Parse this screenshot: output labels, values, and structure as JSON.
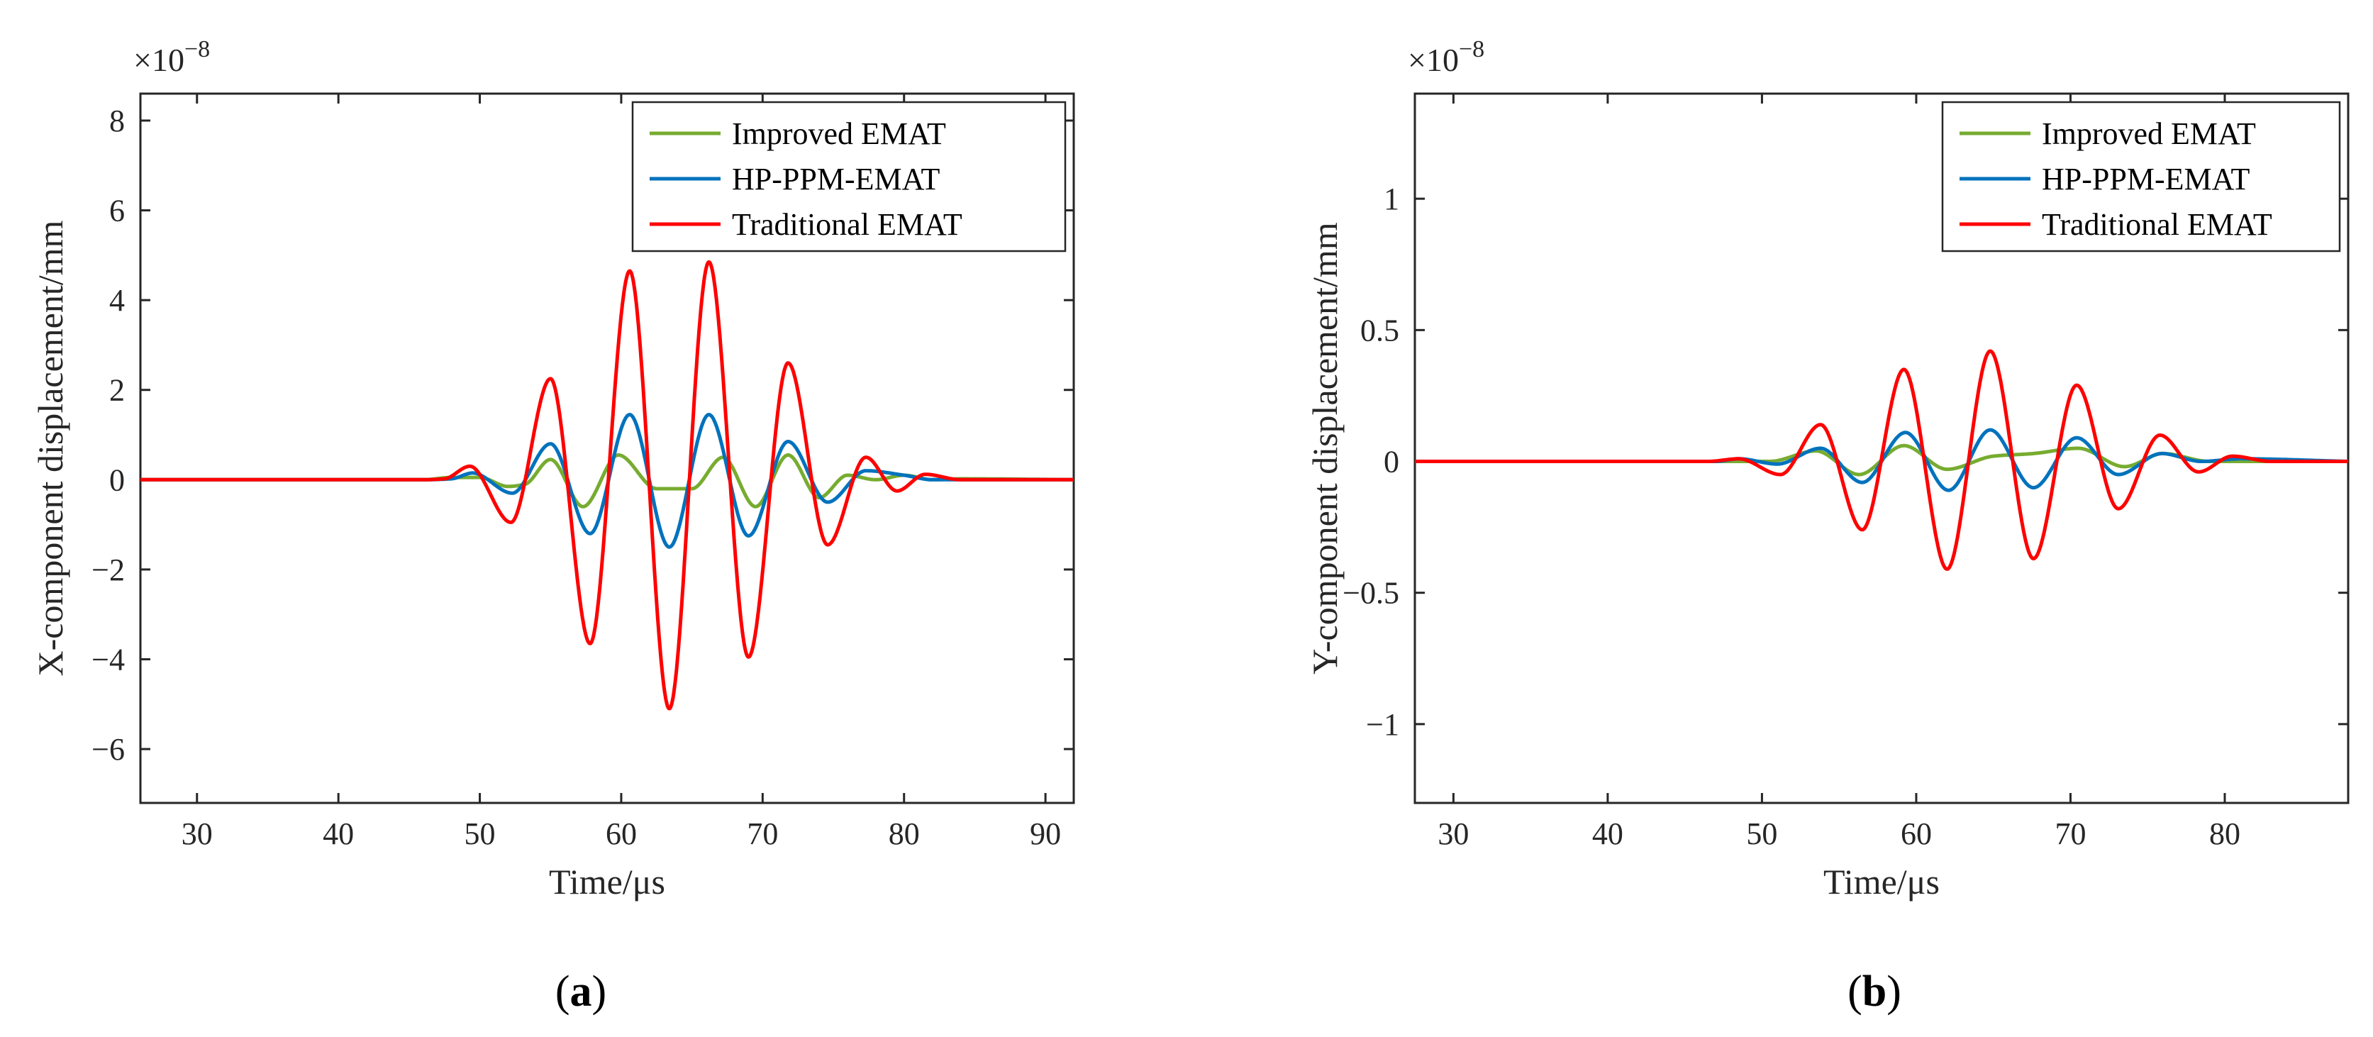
{
  "figure_labels": [
    {
      "open": "(",
      "letter": "a",
      "close": ")"
    },
    {
      "open": "(",
      "letter": "b",
      "close": ")"
    }
  ],
  "colors": {
    "improved": "#77AC30",
    "hp_ppm": "#0072BD",
    "traditional": "#FF0000",
    "axis": "#262626"
  },
  "chart_data": [
    {
      "type": "line",
      "xlabel": "Time/μs",
      "ylabel": "X-component displacement/mm",
      "exponent_text": {
        "base": "×10",
        "power": "−8"
      },
      "xlim": [
        26,
        92
      ],
      "ylim": [
        -7.2,
        8.6
      ],
      "xticks": [
        30,
        40,
        50,
        60,
        70,
        80,
        90
      ],
      "xtick_labels": [
        "30",
        "40",
        "50",
        "60",
        "70",
        "80",
        "90"
      ],
      "yticks": [
        -6,
        -4,
        -2,
        0,
        2,
        4,
        6,
        8
      ],
      "ytick_labels": [
        "−6",
        "−4",
        "−2",
        "0",
        "2",
        "4",
        "6",
        "8"
      ],
      "legend": {
        "position": "top-right",
        "entries": [
          "Improved  EMAT",
          "HP-PPM-EMAT",
          "Traditional EMAT"
        ]
      },
      "series": [
        {
          "name": "Improved  EMAT",
          "color_key": "improved",
          "x": [
            26,
            46,
            48,
            50,
            52,
            53.2,
            55,
            57.3,
            59.8,
            62.5,
            65,
            67.2,
            69.5,
            71.8,
            74,
            76,
            78,
            80,
            82,
            84,
            92
          ],
          "y": [
            0,
            0,
            0.05,
            0.05,
            -0.15,
            -0.1,
            0.45,
            -0.6,
            0.55,
            -0.2,
            -0.2,
            0.5,
            -0.6,
            0.55,
            -0.4,
            0.1,
            0.0,
            0.1,
            0.0,
            0.02,
            0
          ]
        },
        {
          "name": "HP-PPM-EMAT",
          "color_key": "hp_ppm",
          "x": [
            26,
            46,
            48,
            49.5,
            52.3,
            55,
            57.8,
            60.6,
            63.4,
            66.2,
            69,
            71.8,
            74.6,
            77.3,
            80,
            82,
            92
          ],
          "y": [
            0,
            0,
            0.02,
            0.15,
            -0.3,
            0.8,
            -1.2,
            1.45,
            -1.5,
            1.45,
            -1.25,
            0.85,
            -0.5,
            0.2,
            0.1,
            0,
            0
          ]
        },
        {
          "name": "Traditional EMAT",
          "color_key": "traditional",
          "x": [
            26,
            46,
            47.5,
            49.3,
            52.2,
            55,
            57.8,
            60.6,
            63.4,
            66.2,
            69,
            71.8,
            74.6,
            77.3,
            79.5,
            81.5,
            84,
            92
          ],
          "y": [
            0,
            0,
            0.02,
            0.3,
            -0.95,
            2.25,
            -3.65,
            4.65,
            -5.1,
            4.85,
            -3.95,
            2.6,
            -1.45,
            0.5,
            -0.25,
            0.12,
            0,
            0
          ]
        }
      ]
    },
    {
      "type": "line",
      "xlabel": "Time/μs",
      "ylabel": "Y-component displacement/mm",
      "exponent_text": {
        "base": "×10",
        "power": "−8"
      },
      "xlim": [
        27.5,
        88
      ],
      "ylim": [
        -1.3,
        1.4
      ],
      "xticks": [
        30,
        40,
        50,
        60,
        70,
        80
      ],
      "xtick_labels": [
        "30",
        "40",
        "50",
        "60",
        "70",
        "80"
      ],
      "yticks": [
        -1,
        -0.5,
        0,
        0.5,
        1
      ],
      "ytick_labels": [
        "−1",
        "−0.5",
        "0",
        "0.5",
        "1"
      ],
      "legend": {
        "position": "top-right",
        "entries": [
          "Improved EMAT",
          "HP-PPM-EMAT",
          "Traditional EMAT"
        ]
      },
      "series": [
        {
          "name": "Improved EMAT",
          "color_key": "improved",
          "x": [
            27.5,
            47,
            50.5,
            53.5,
            56.3,
            59.2,
            62,
            65,
            67.6,
            70.5,
            73.5,
            76,
            79,
            88
          ],
          "y": [
            0,
            0,
            0,
            0.04,
            -0.05,
            0.06,
            -0.03,
            0.02,
            0.03,
            0.05,
            -0.02,
            0.03,
            0,
            0
          ]
        },
        {
          "name": "HP-PPM-EMAT",
          "color_key": "hp_ppm",
          "x": [
            27.5,
            47,
            48.5,
            51,
            53.8,
            56.5,
            59.3,
            62.1,
            64.8,
            67.6,
            70.4,
            73.1,
            75.9,
            78.5,
            81,
            88
          ],
          "y": [
            0,
            0,
            0.01,
            -0.01,
            0.05,
            -0.08,
            0.11,
            -0.11,
            0.12,
            -0.1,
            0.09,
            -0.05,
            0.03,
            0.0,
            0.01,
            0
          ]
        },
        {
          "name": "Traditional EMAT",
          "color_key": "traditional",
          "x": [
            27.5,
            46.5,
            48.5,
            51.2,
            53.8,
            56.5,
            59.2,
            62,
            64.8,
            67.6,
            70.4,
            73.1,
            75.8,
            78.3,
            80.5,
            83,
            88
          ],
          "y": [
            0,
            0,
            0.01,
            -0.05,
            0.14,
            -0.26,
            0.35,
            -0.41,
            0.42,
            -0.37,
            0.29,
            -0.18,
            0.1,
            -0.04,
            0.02,
            0,
            0
          ]
        }
      ]
    }
  ]
}
